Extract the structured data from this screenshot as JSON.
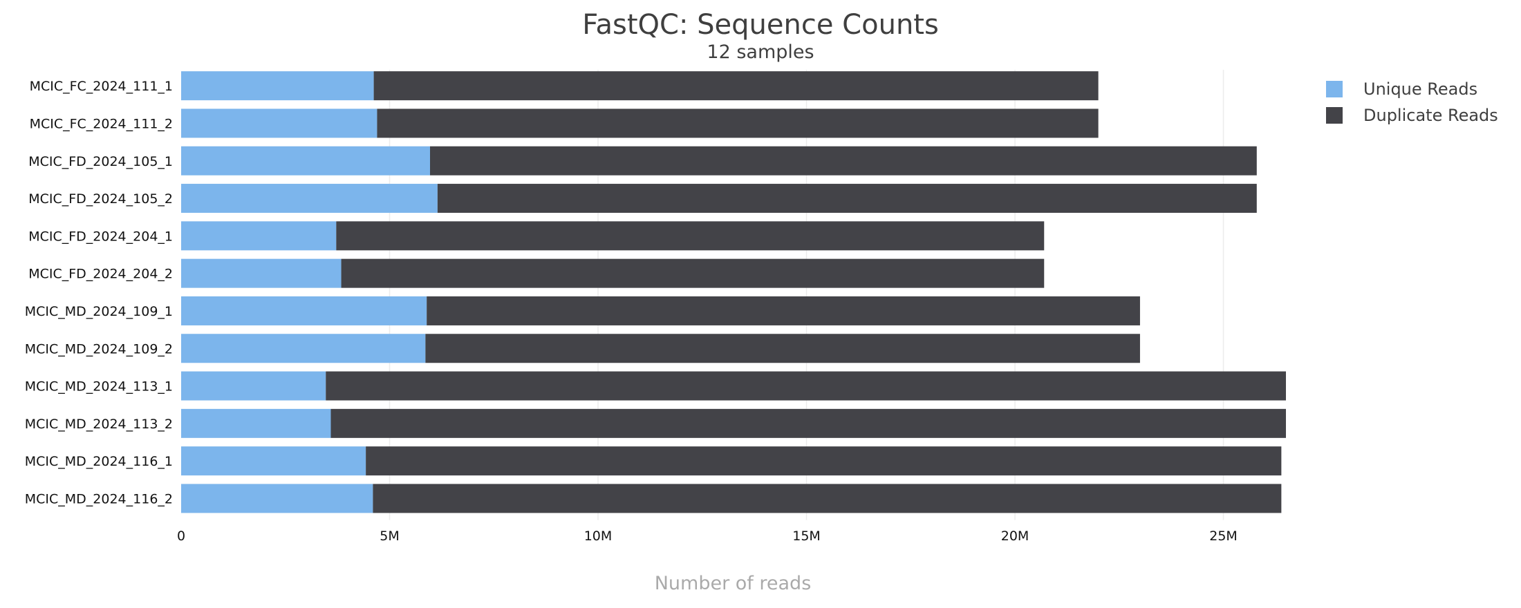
{
  "chart_data": {
    "type": "bar",
    "orientation": "horizontal",
    "stacked": true,
    "title": "FastQC: Sequence Counts",
    "subtitle": "12 samples",
    "xlabel": "Number of reads",
    "ylabel": "",
    "xlim": [
      0,
      26500000
    ],
    "xticks": [
      {
        "value": 0,
        "label": "0"
      },
      {
        "value": 5000000,
        "label": "5M"
      },
      {
        "value": 10000000,
        "label": "10M"
      },
      {
        "value": 15000000,
        "label": "15M"
      },
      {
        "value": 20000000,
        "label": "20M"
      },
      {
        "value": 25000000,
        "label": "25M"
      }
    ],
    "grid": true,
    "legend_position": "top-right",
    "categories": [
      "MCIC_FC_2024_111_1",
      "MCIC_FC_2024_111_2",
      "MCIC_FD_2024_105_1",
      "MCIC_FD_2024_105_2",
      "MCIC_FD_2024_204_1",
      "MCIC_FD_2024_204_2",
      "MCIC_MD_2024_109_1",
      "MCIC_MD_2024_109_2",
      "MCIC_MD_2024_113_1",
      "MCIC_MD_2024_113_2",
      "MCIC_MD_2024_116_1",
      "MCIC_MD_2024_116_2"
    ],
    "series": [
      {
        "name": "Unique Reads",
        "color": "#7cb5ec",
        "values": [
          4620000,
          4700000,
          5970000,
          6150000,
          3720000,
          3840000,
          5890000,
          5860000,
          3470000,
          3590000,
          4430000,
          4600000
        ]
      },
      {
        "name": "Duplicate Reads",
        "color": "#434348",
        "values": [
          17380000,
          17300000,
          19830000,
          19650000,
          16980000,
          16860000,
          17110000,
          17140000,
          23030000,
          22910000,
          21960000,
          21790000
        ]
      }
    ]
  }
}
